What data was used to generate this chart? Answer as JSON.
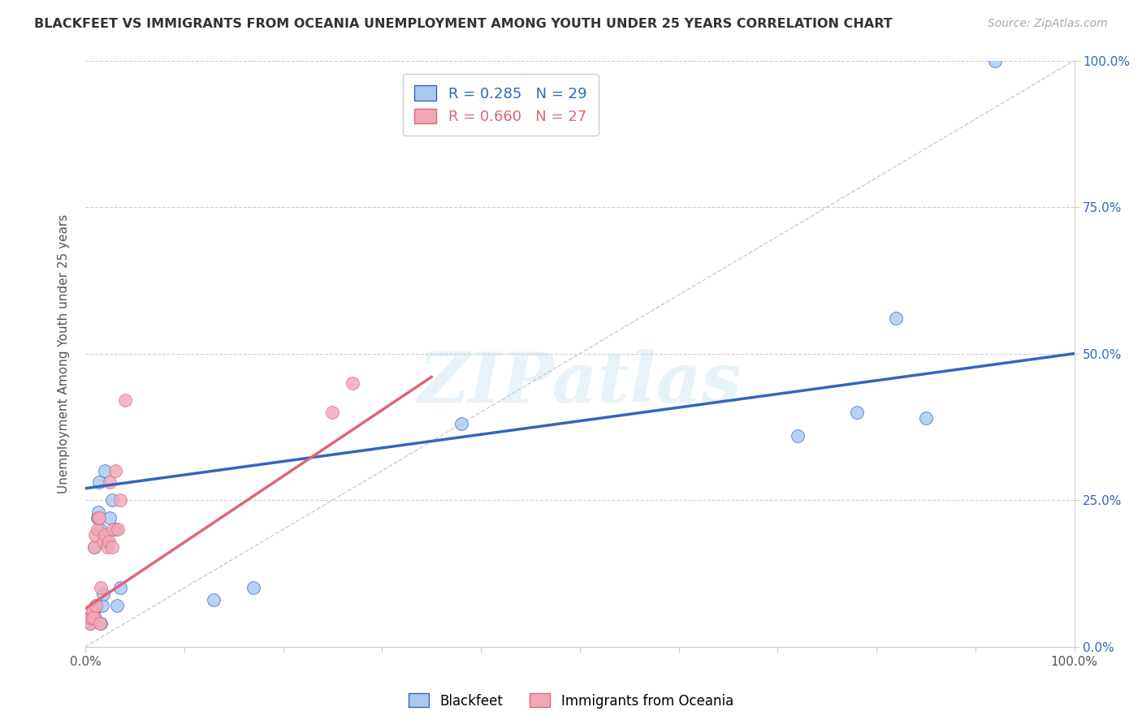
{
  "title": "BLACKFEET VS IMMIGRANTS FROM OCEANIA UNEMPLOYMENT AMONG YOUTH UNDER 25 YEARS CORRELATION CHART",
  "source": "Source: ZipAtlas.com",
  "ylabel": "Unemployment Among Youth under 25 years",
  "xlim": [
    0.0,
    1.0
  ],
  "ylim": [
    0.0,
    1.0
  ],
  "watermark": "ZIPatlas",
  "legend_label1": "Blackfeet",
  "legend_label2": "Immigrants from Oceania",
  "R1": 0.285,
  "N1": 29,
  "R2": 0.66,
  "N2": 27,
  "color_blue": "#a8c8f0",
  "color_pink": "#f0a8b8",
  "line_color_blue": "#3366bb",
  "line_color_pink": "#dd6677",
  "blackfeet_x": [
    0.003,
    0.005,
    0.007,
    0.008,
    0.009,
    0.01,
    0.011,
    0.012,
    0.013,
    0.014,
    0.015,
    0.016,
    0.017,
    0.018,
    0.02,
    0.022,
    0.025,
    0.027,
    0.03,
    0.032,
    0.035,
    0.13,
    0.17,
    0.38,
    0.72,
    0.78,
    0.82,
    0.85,
    0.92
  ],
  "blackfeet_y": [
    0.05,
    0.04,
    0.05,
    0.06,
    0.17,
    0.05,
    0.07,
    0.22,
    0.23,
    0.28,
    0.2,
    0.04,
    0.07,
    0.09,
    0.3,
    0.18,
    0.22,
    0.25,
    0.2,
    0.07,
    0.1,
    0.08,
    0.1,
    0.38,
    0.36,
    0.4,
    0.56,
    0.39,
    1.0
  ],
  "oceania_x": [
    0.003,
    0.004,
    0.005,
    0.006,
    0.007,
    0.008,
    0.009,
    0.01,
    0.011,
    0.012,
    0.013,
    0.014,
    0.015,
    0.016,
    0.018,
    0.02,
    0.022,
    0.024,
    0.025,
    0.027,
    0.028,
    0.03,
    0.033,
    0.035,
    0.04,
    0.25,
    0.27
  ],
  "oceania_y": [
    0.05,
    0.05,
    0.04,
    0.05,
    0.06,
    0.05,
    0.17,
    0.19,
    0.07,
    0.2,
    0.22,
    0.22,
    0.04,
    0.1,
    0.18,
    0.19,
    0.17,
    0.18,
    0.28,
    0.17,
    0.2,
    0.3,
    0.2,
    0.25,
    0.42,
    0.4,
    0.45
  ],
  "bf_line_x0": 0.0,
  "bf_line_y0": 0.27,
  "bf_line_x1": 1.0,
  "bf_line_y1": 0.5,
  "oc_line_x0": 0.0,
  "oc_line_y0": 0.065,
  "oc_line_x1": 0.35,
  "oc_line_y1": 0.46,
  "x_ticks": [
    0.0,
    0.1,
    0.2,
    0.3,
    0.4,
    0.5,
    0.6,
    0.7,
    0.8,
    0.9,
    1.0
  ],
  "y_ticks": [
    0.0,
    0.25,
    0.5,
    0.75,
    1.0
  ],
  "y_tick_labels": [
    "0.0%",
    "25.0%",
    "50.0%",
    "75.0%",
    "100.0%"
  ]
}
